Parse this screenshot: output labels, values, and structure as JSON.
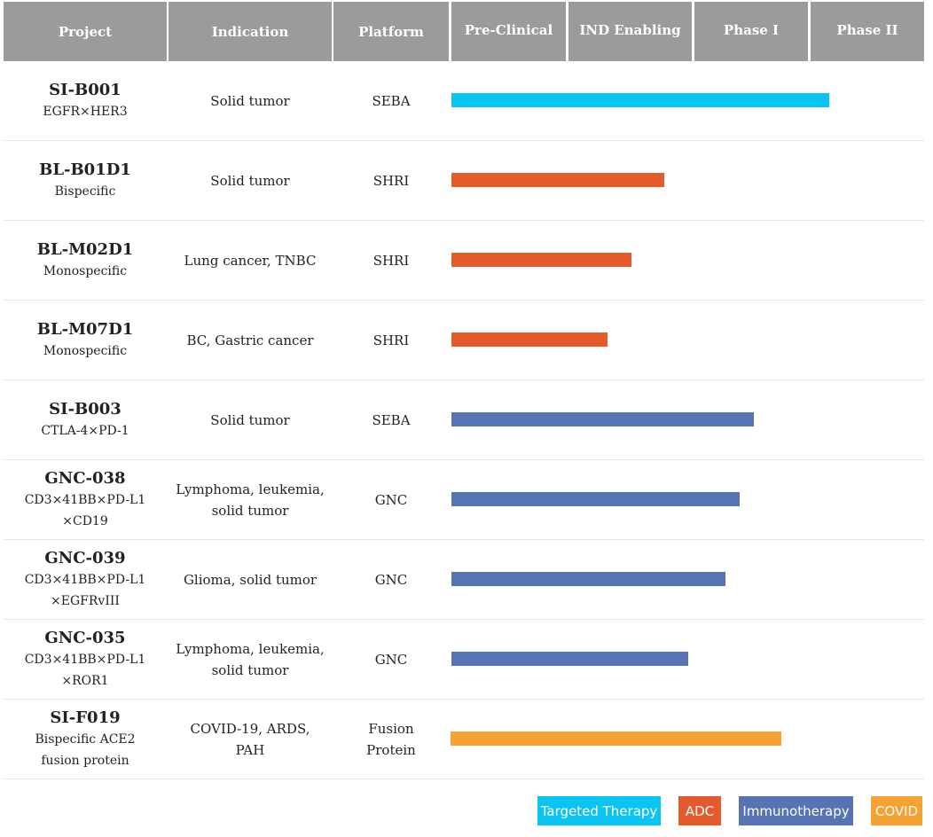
{
  "header": {
    "project": "Project",
    "indication": "Indication",
    "platform": "Platform",
    "preclinical": "Pre-Clinical",
    "ind_enabling": "IND Enabling",
    "phase1": "Phase I",
    "phase2": "Phase II"
  },
  "pipeline": [
    {
      "name": "SI-B001",
      "sub": [
        "EGFR×HER3"
      ],
      "indication": [
        "Solid tumor"
      ],
      "platform": [
        "SEBA"
      ],
      "category": "Targeted Therapy",
      "progress": 0.8
    },
    {
      "name": "BL-B01D1",
      "sub": [
        "Bispecific"
      ],
      "indication": [
        "Solid tumor"
      ],
      "platform": [
        "SHRI"
      ],
      "category": "ADC",
      "progress": 0.45
    },
    {
      "name": "BL-M02D1",
      "sub": [
        "Monospecific"
      ],
      "indication": [
        "Lung cancer, TNBC"
      ],
      "platform": [
        "SHRI"
      ],
      "category": "ADC",
      "progress": 0.38
    },
    {
      "name": "BL-M07D1",
      "sub": [
        "Monospecific"
      ],
      "indication": [
        "BC, Gastric cancer"
      ],
      "platform": [
        "SHRI"
      ],
      "category": "ADC",
      "progress": 0.33
    },
    {
      "name": "SI-B003",
      "sub": [
        "CTLA-4×PD-1"
      ],
      "indication": [
        "Solid tumor"
      ],
      "platform": [
        "SEBA"
      ],
      "category": "Immunotherapy",
      "progress": 0.64
    },
    {
      "name": "GNC-038",
      "sub": [
        "CD3×41BB×PD-L1",
        "×CD19"
      ],
      "indication": [
        "Lymphoma, leukemia,",
        "solid tumor"
      ],
      "platform": [
        "GNC"
      ],
      "category": "Immunotherapy",
      "progress": 0.61
    },
    {
      "name": "GNC-039",
      "sub": [
        "CD3×41BB×PD-L1",
        "×EGFRvIII"
      ],
      "indication": [
        "Glioma, solid tumor"
      ],
      "platform": [
        "GNC"
      ],
      "category": "Immunotherapy",
      "progress": 0.58
    },
    {
      "name": "GNC-035",
      "sub": [
        "CD3×41BB×PD-L1",
        "×ROR1"
      ],
      "indication": [
        "Lymphoma, leukemia,",
        "solid tumor"
      ],
      "platform": [
        "GNC"
      ],
      "category": "Immunotherapy",
      "progress": 0.5
    },
    {
      "name": "SI-F019",
      "sub": [
        "Bispecific ACE2",
        "fusion protein"
      ],
      "indication": [
        "COVID-19, ARDS,",
        "PAH"
      ],
      "platform": [
        "Fusion",
        "Protein"
      ],
      "category": "COVID",
      "progress": 0.7
    }
  ],
  "legend": [
    {
      "label": "Targeted Therapy",
      "color": "#0bc4f2"
    },
    {
      "label": "ADC",
      "color": "#e45a2d"
    },
    {
      "label": "Immunotherapy",
      "color": "#5873b4"
    },
    {
      "label": "COVID",
      "color": "#f4a233"
    }
  ],
  "colors": {
    "header_bg": "#9b9b9b",
    "Targeted Therapy": "#0bc4f2",
    "ADC": "#e45a2d",
    "Immunotherapy": "#5873b4",
    "COVID": "#f4a233"
  }
}
